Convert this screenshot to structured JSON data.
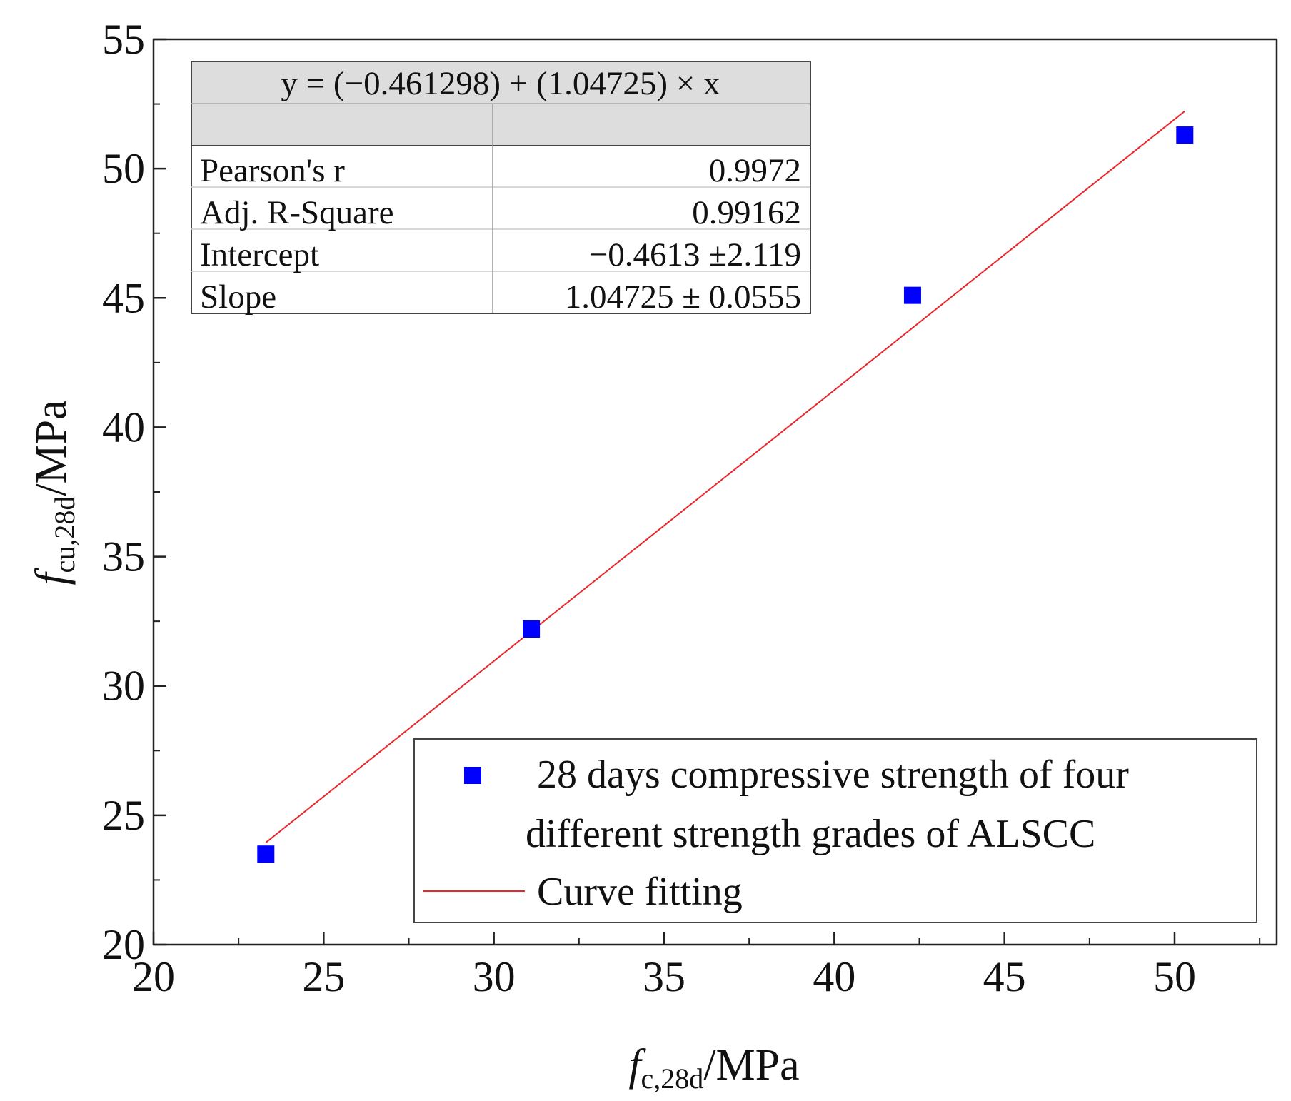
{
  "chart_data": {
    "type": "scatter",
    "xlabel": {
      "main": "f",
      "sub": "c,28d",
      "unit": "/MPa"
    },
    "ylabel": {
      "main": "f",
      "sub": "cu,28d",
      "unit": "/MPa"
    },
    "xlim": [
      20,
      53
    ],
    "ylim": [
      20,
      55
    ],
    "x_ticks": [
      20,
      25,
      30,
      35,
      40,
      45,
      50
    ],
    "y_ticks": [
      20,
      25,
      30,
      35,
      40,
      45,
      50,
      55
    ],
    "x_tick_labels": [
      "20",
      "25",
      "30",
      "35",
      "40",
      "45",
      "50"
    ],
    "y_tick_labels": [
      "20",
      "25",
      "30",
      "35",
      "40",
      "45",
      "50",
      "55"
    ],
    "x_minor_step": 2.5,
    "y_minor_step": 2.5,
    "series": [
      {
        "name": "28 days compressive strength of four different strength grades of ALSCC",
        "legend_lines": [
          "28 days compressive strength of four",
          "different strength grades of ALSCC"
        ],
        "marker": "square",
        "color": "#0000ff",
        "x": [
          23.3,
          31.1,
          42.3,
          50.3
        ],
        "y": [
          23.5,
          32.2,
          45.1,
          51.3
        ]
      },
      {
        "name": "Curve fitting",
        "type": "line",
        "color": "#e8262b",
        "x": [
          23.3,
          50.3
        ],
        "y": [
          23.945,
          52.222
        ]
      }
    ],
    "fit_table": {
      "equation": "y = (−0.461298) + (1.04725) × x",
      "rows": [
        {
          "label": "Pearson's r",
          "value": "0.9972"
        },
        {
          "label": "Adj. R-Square",
          "value": "0.99162"
        },
        {
          "label": "Intercept",
          "value": "−0.4613 ±2.119"
        },
        {
          "label": "Slope",
          "value": "1.04725 ± 0.0555"
        }
      ]
    },
    "legend_position": "bottom-right",
    "grid": false
  }
}
